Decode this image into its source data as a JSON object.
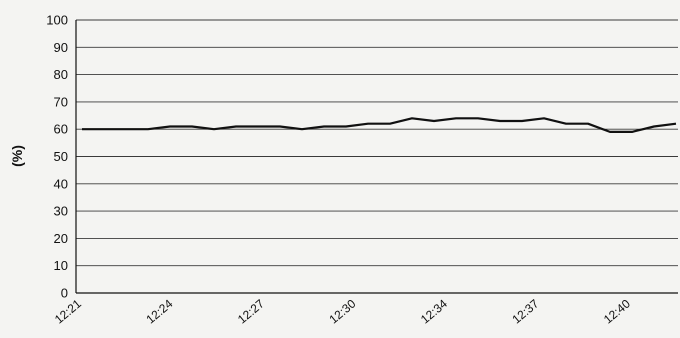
{
  "chart_data": {
    "type": "line",
    "ylabel": "(%)",
    "xlabel": "",
    "title": "",
    "ylim": [
      0,
      100
    ],
    "yticks": [
      0,
      10,
      20,
      30,
      40,
      50,
      60,
      70,
      80,
      90,
      100
    ],
    "xtick_labels": [
      "12:21",
      "12:24",
      "12:27",
      "12:30",
      "12:34",
      "12:37",
      "12:40"
    ],
    "grid": true,
    "legend": "none",
    "line_color": "#111111",
    "series": [
      {
        "values": [
          60,
          60,
          60,
          60,
          61,
          61,
          60,
          61,
          61,
          61,
          60,
          61,
          61,
          62,
          62,
          64,
          63,
          64,
          64,
          63,
          63,
          64,
          62,
          62,
          59,
          59,
          61,
          62
        ]
      }
    ]
  }
}
